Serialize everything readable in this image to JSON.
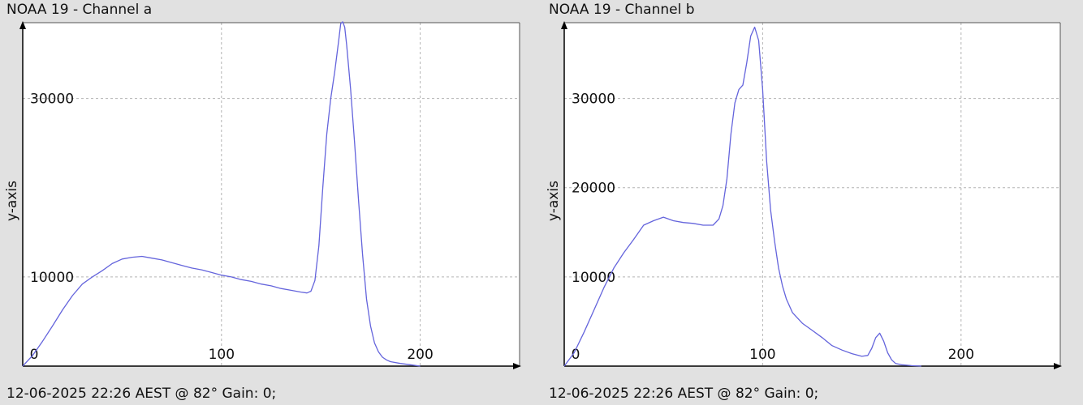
{
  "chart_data": [
    {
      "type": "line",
      "title": "NOAA 19 - Channel a",
      "footer": "12-06-2025 22:26 AEST @ 82° Gain: 0;",
      "ylabel": "y-axis",
      "xlabel": "",
      "xlim": [
        0,
        250
      ],
      "ylim": [
        0,
        38500
      ],
      "xticks": [
        0,
        100,
        200
      ],
      "yticks": [
        10000,
        30000
      ],
      "grid": true,
      "color": "#6464dc",
      "series": [
        {
          "x": [
            0,
            5,
            10,
            15,
            20,
            25,
            30,
            35,
            40,
            45,
            50,
            55,
            60,
            65,
            70,
            75,
            80,
            85,
            90,
            95,
            100,
            105,
            110,
            115,
            120,
            125,
            130,
            135,
            140,
            143,
            145,
            147,
            149,
            151,
            153,
            155,
            157,
            159,
            160,
            161,
            162,
            163,
            165,
            167,
            169,
            171,
            173,
            175,
            177,
            179,
            181,
            183,
            185,
            190,
            195,
            200
          ],
          "y": [
            0,
            1200,
            2800,
            4500,
            6300,
            7900,
            9200,
            10000,
            10700,
            11500,
            12000,
            12200,
            12300,
            12100,
            11900,
            11600,
            11300,
            11000,
            10800,
            10500,
            10200,
            10000,
            9700,
            9500,
            9200,
            9000,
            8700,
            8500,
            8300,
            8200,
            8400,
            9600,
            13500,
            20000,
            26000,
            30000,
            33000,
            36500,
            38400,
            38600,
            38000,
            36000,
            31000,
            25000,
            18500,
            12500,
            7500,
            4500,
            2600,
            1600,
            1000,
            700,
            500,
            300,
            150,
            0
          ]
        }
      ]
    },
    {
      "type": "line",
      "title": "NOAA 19 - Channel b",
      "footer": "12-06-2025 22:26 AEST @ 82° Gain: 0;",
      "ylabel": "y-axis",
      "xlabel": "",
      "xlim": [
        0,
        250
      ],
      "ylim": [
        0,
        38500
      ],
      "xticks": [
        0,
        100,
        200
      ],
      "yticks": [
        10000,
        20000,
        30000
      ],
      "grid": true,
      "color": "#6464dc",
      "series": [
        {
          "x": [
            0,
            5,
            10,
            15,
            20,
            25,
            30,
            35,
            40,
            45,
            50,
            55,
            60,
            65,
            70,
            75,
            78,
            80,
            82,
            84,
            86,
            88,
            90,
            92,
            94,
            96,
            98,
            100,
            102,
            104,
            106,
            108,
            110,
            112,
            115,
            120,
            125,
            130,
            135,
            140,
            145,
            150,
            153,
            155,
            157,
            159,
            161,
            163,
            165,
            167,
            170,
            175,
            180
          ],
          "y": [
            0,
            1500,
            3800,
            6300,
            8800,
            11000,
            12700,
            14200,
            15800,
            16300,
            16700,
            16300,
            16100,
            16000,
            15800,
            15800,
            16500,
            18000,
            21000,
            26000,
            29500,
            31000,
            31500,
            34000,
            37000,
            38000,
            36500,
            31000,
            23000,
            17500,
            14000,
            11000,
            9000,
            7500,
            6000,
            4800,
            4000,
            3200,
            2300,
            1800,
            1400,
            1100,
            1200,
            2000,
            3200,
            3700,
            2800,
            1500,
            700,
            300,
            150,
            50,
            0
          ]
        }
      ]
    }
  ]
}
